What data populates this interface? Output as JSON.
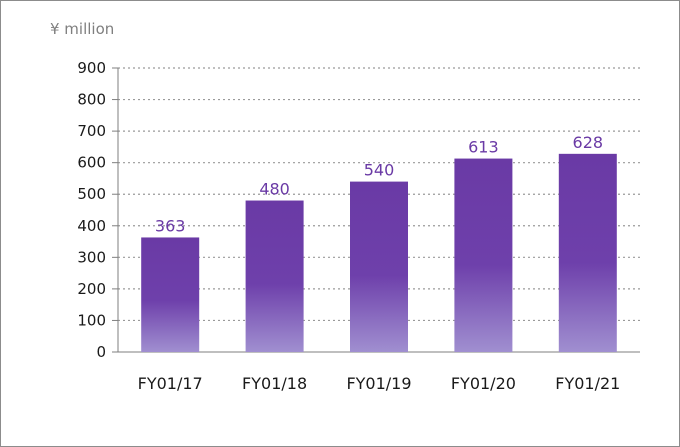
{
  "chart_data": {
    "type": "bar",
    "unit_label": "¥ million",
    "categories": [
      "FY01/17",
      "FY01/18",
      "FY01/19",
      "FY01/20",
      "FY01/21"
    ],
    "values": [
      363,
      480,
      540,
      613,
      628
    ],
    "data_labels": [
      "363",
      "480",
      "540",
      "613",
      "628"
    ],
    "ylim": [
      0,
      900
    ],
    "yticks": [
      0,
      100,
      200,
      300,
      400,
      500,
      600,
      700,
      800,
      900
    ],
    "grid": true,
    "bar_color_top": "#6a3aa5",
    "bar_color_bottom": "#a08fd0",
    "label_color": "#6a3aa5"
  }
}
